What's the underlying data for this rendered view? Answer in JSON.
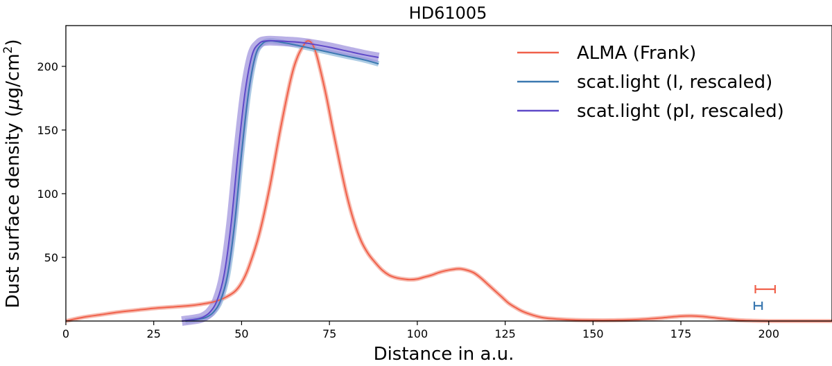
{
  "chart_data": {
    "type": "line",
    "title": "HD61005",
    "xlabel": "Distance in a.u.",
    "ylabel_main": "Dust surface density (",
    "ylabel_mu": "μ",
    "ylabel_unit": "g/cm",
    "ylabel_sup": "2",
    "ylabel_close": ")",
    "xlim": [
      0,
      218
    ],
    "ylim": [
      0,
      232
    ],
    "xticks": [
      0,
      25,
      50,
      75,
      100,
      125,
      150,
      175,
      200
    ],
    "yticks": [
      50,
      100,
      150,
      200
    ],
    "grid": false,
    "legend_position": "top-right",
    "series": [
      {
        "name": "ALMA (Frank)",
        "color": "#f0604a",
        "band_color": "#f4a090",
        "band_halfwidth": 3,
        "x": [
          0,
          5,
          10,
          15,
          20,
          25,
          30,
          35,
          38,
          42,
          45,
          48,
          50,
          52,
          55,
          58,
          61,
          64,
          66,
          68,
          69,
          70,
          71,
          72,
          74,
          76,
          78,
          80,
          82,
          84,
          86,
          88,
          90,
          92,
          94,
          96,
          98,
          100,
          102,
          104,
          106,
          108,
          110,
          112,
          114,
          116,
          118,
          120,
          122,
          124,
          126,
          128,
          130,
          133,
          136,
          140,
          145,
          150,
          155,
          160,
          165,
          170,
          175,
          178,
          181,
          184,
          188,
          192,
          196,
          200,
          205,
          210,
          218
        ],
        "y": [
          0,
          3,
          5,
          7,
          8.5,
          10,
          11,
          12,
          13,
          15,
          18,
          23,
          30,
          42,
          68,
          105,
          150,
          190,
          208,
          218,
          220,
          218,
          212,
          202,
          178,
          150,
          123,
          98,
          78,
          63,
          53,
          46,
          40,
          36,
          34,
          33,
          32.5,
          33,
          34.5,
          36,
          38,
          39.5,
          40.5,
          41,
          40,
          38,
          34,
          29,
          24,
          19,
          14,
          10.5,
          7.5,
          4.5,
          2.5,
          1.5,
          0.8,
          0.6,
          0.6,
          0.9,
          1.5,
          2.6,
          3.8,
          4,
          3.6,
          2.7,
          1.5,
          0.6,
          0.2,
          0,
          0,
          0,
          0
        ]
      },
      {
        "name": "scat.light (I, rescaled)",
        "color": "#3a78b0",
        "band_color": "#8ab7d8",
        "band_halfwidth": 4,
        "x": [
          34,
          38,
          40,
          42,
          44,
          46,
          48,
          50,
          52,
          54,
          56,
          58,
          60,
          62,
          65,
          70,
          75,
          80,
          85,
          89
        ],
        "y": [
          0,
          1.5,
          3,
          7,
          16,
          36,
          76,
          132,
          180,
          209,
          218,
          220,
          219.5,
          218.5,
          217,
          214,
          211,
          208,
          205,
          202
        ]
      },
      {
        "name": "scat.light (pI, rescaled)",
        "color": "#5e48c8",
        "band_color": "#9b8fdb",
        "band_halfwidth": 7,
        "x": [
          33,
          37,
          39,
          41,
          43,
          45,
          47,
          49,
          51,
          53,
          55,
          57,
          60,
          63,
          66,
          70,
          75,
          80,
          85,
          89
        ],
        "y": [
          0,
          1.5,
          3,
          7,
          16,
          36,
          76,
          132,
          180,
          209,
          218,
          220,
          220,
          219.5,
          219,
          217.5,
          215,
          212,
          209,
          207
        ]
      }
    ],
    "annotations": [
      {
        "series": "ALMA (Frank)",
        "type": "errorbar",
        "x_center": 199,
        "half_width": 2.8,
        "y": 25,
        "color": "#f0604a"
      },
      {
        "series": "scat.light (I, rescaled)",
        "type": "errorbar",
        "x_center": 197,
        "half_width": 1.1,
        "y": 12,
        "color": "#3a78b0"
      }
    ]
  }
}
